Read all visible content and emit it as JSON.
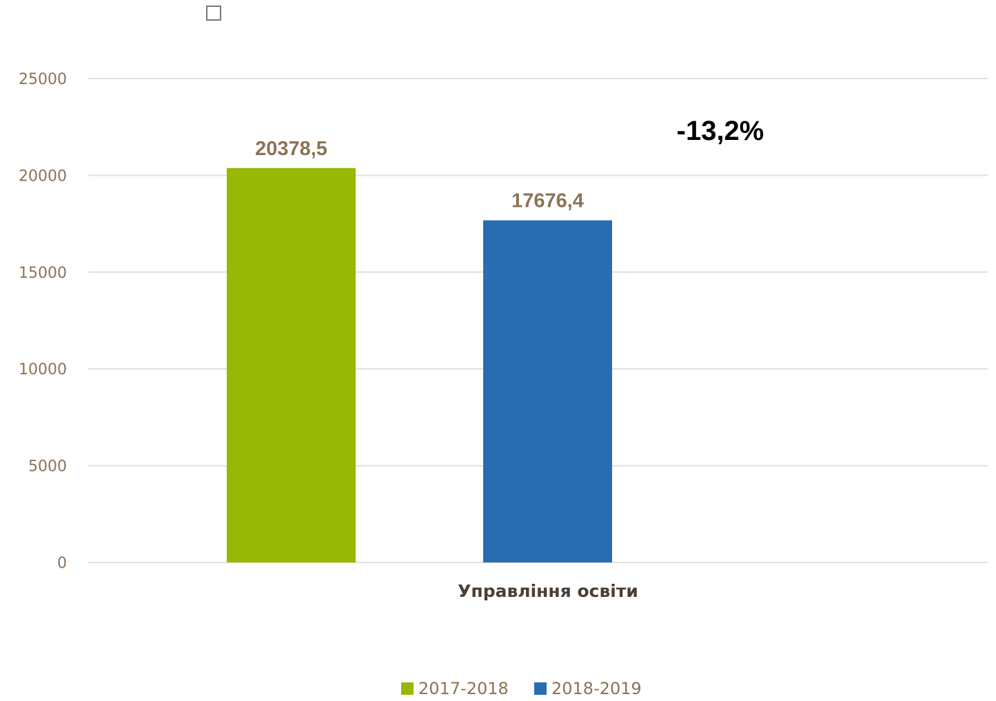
{
  "chart_data": {
    "type": "bar",
    "categories": [
      "Управління освіти"
    ],
    "series": [
      {
        "name": "2017-2018",
        "values": [
          20378.5
        ],
        "label": "20378,5",
        "color": "#97B804"
      },
      {
        "name": "2018-2019",
        "values": [
          17676.4
        ],
        "label": "17676,4",
        "color": "#2A6CB2"
      }
    ],
    "ylim": [
      0,
      25000
    ],
    "yticks": [
      0,
      5000,
      10000,
      15000,
      20000,
      25000
    ],
    "ytick_labels": [
      "0",
      "5000",
      "10000",
      "15000",
      "20000",
      "25000"
    ],
    "annotation": "-13,2%",
    "grid": true,
    "legend_position": "bottom-center"
  },
  "colors": {
    "tick_text": "#8B7355",
    "gridline": "#E3DFD8",
    "checkbox_border": "#777777"
  },
  "icons": {
    "top_left": "checkbox-icon"
  }
}
